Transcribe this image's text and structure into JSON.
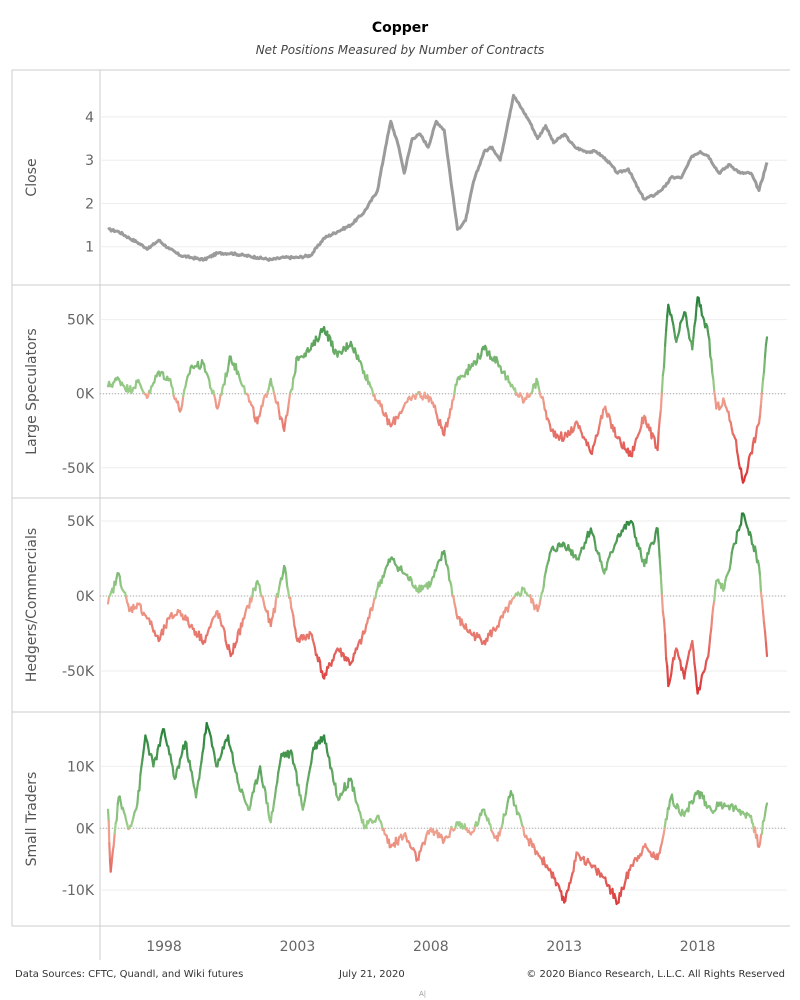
{
  "header": {
    "title": "Copper",
    "subtitle": "Net Positions Measured by Number of Contracts"
  },
  "footer": {
    "sources": "Data Sources: CFTC, Quandl, and Wiki futures",
    "date": "July 21, 2020",
    "copyright": "© 2020 Bianco Research, L.L.C. All Rights Reserved",
    "tiny": "A|"
  },
  "colors": {
    "close_line": "#9b9b9b",
    "positive_dark": "#1e7b34",
    "positive_light": "#9fd08c",
    "negative_light": "#f0a693",
    "negative_dark": "#d7262b",
    "gridline": "#eeeeee",
    "zero_line": "#aaaaaa",
    "border": "#cccccc"
  },
  "chart_data": {
    "type": "line",
    "x_axis": {
      "min": 1995.6,
      "max": 2020.6,
      "ticks": [
        1998,
        2003,
        2008,
        2013,
        2018
      ],
      "tick_labels": [
        "1998",
        "2003",
        "2008",
        "2013",
        "2018"
      ]
    },
    "panels": [
      {
        "name": "Close",
        "ylabel": "Close",
        "style": "gray",
        "ylim": [
          0.3,
          4.9
        ],
        "ticks": [
          1,
          2,
          3,
          4
        ],
        "tick_labels": [
          "1",
          "2",
          "3",
          "4"
        ],
        "zero_line": false,
        "x": [
          1995.9,
          1996.3,
          1996.7,
          1997.0,
          1997.4,
          1997.8,
          1998.2,
          1998.6,
          1999.0,
          1999.5,
          2000.0,
          2000.5,
          2001.0,
          2001.5,
          2002.0,
          2002.5,
          2003.0,
          2003.5,
          2004.0,
          2004.5,
          2005.0,
          2005.5,
          2006.0,
          2006.3,
          2006.5,
          2006.8,
          2007.0,
          2007.3,
          2007.6,
          2007.9,
          2008.2,
          2008.5,
          2008.8,
          2009.0,
          2009.3,
          2009.6,
          2010.0,
          2010.3,
          2010.6,
          2010.9,
          2011.1,
          2011.4,
          2011.7,
          2012.0,
          2012.3,
          2012.6,
          2013.0,
          2013.4,
          2013.8,
          2014.2,
          2014.6,
          2015.0,
          2015.4,
          2015.8,
          2016.0,
          2016.4,
          2016.8,
          2017.0,
          2017.4,
          2017.8,
          2018.1,
          2018.4,
          2018.8,
          2019.2,
          2019.6,
          2020.0,
          2020.3,
          2020.6
        ],
        "y": [
          1.4,
          1.35,
          1.2,
          1.1,
          0.95,
          1.15,
          0.95,
          0.8,
          0.75,
          0.7,
          0.85,
          0.85,
          0.8,
          0.75,
          0.7,
          0.75,
          0.75,
          0.8,
          1.2,
          1.35,
          1.5,
          1.8,
          2.3,
          3.3,
          3.9,
          3.3,
          2.7,
          3.5,
          3.6,
          3.3,
          3.9,
          3.7,
          2.3,
          1.4,
          1.6,
          2.5,
          3.2,
          3.3,
          3.0,
          3.9,
          4.5,
          4.2,
          3.9,
          3.5,
          3.8,
          3.4,
          3.6,
          3.3,
          3.2,
          3.2,
          3.0,
          2.7,
          2.8,
          2.3,
          2.1,
          2.2,
          2.4,
          2.6,
          2.6,
          3.1,
          3.2,
          3.1,
          2.7,
          2.9,
          2.7,
          2.7,
          2.3,
          2.95
        ]
      },
      {
        "name": "Large Speculators",
        "ylabel": "Large Speculators",
        "style": "diverging",
        "ylim": [
          -65,
          68
        ],
        "ticks": [
          -50,
          0,
          50
        ],
        "tick_labels": [
          "-50K",
          "0K",
          "50K"
        ],
        "zero_line": true,
        "x": [
          1995.9,
          1996.3,
          1996.7,
          1997.0,
          1997.4,
          1997.8,
          1998.2,
          1998.6,
          1999.0,
          1999.5,
          2000.0,
          2000.5,
          2001.0,
          2001.5,
          2002.0,
          2002.5,
          2003.0,
          2003.5,
          2004.0,
          2004.5,
          2005.0,
          2005.5,
          2006.0,
          2006.5,
          2007.0,
          2007.5,
          2008.0,
          2008.5,
          2009.0,
          2009.5,
          2010.0,
          2010.5,
          2011.0,
          2011.5,
          2012.0,
          2012.5,
          2013.0,
          2013.5,
          2014.0,
          2014.5,
          2015.0,
          2015.5,
          2016.0,
          2016.5,
          2016.9,
          2017.2,
          2017.5,
          2017.8,
          2018.0,
          2018.4,
          2018.7,
          2019.0,
          2019.4,
          2019.7,
          2020.0,
          2020.3,
          2020.6
        ],
        "y": [
          5,
          10,
          2,
          8,
          -2,
          15,
          10,
          -12,
          18,
          20,
          -10,
          25,
          5,
          -20,
          10,
          -25,
          25,
          30,
          45,
          25,
          35,
          15,
          -5,
          -22,
          -8,
          0,
          -3,
          -28,
          10,
          18,
          30,
          22,
          5,
          -5,
          8,
          -25,
          -30,
          -20,
          -40,
          -10,
          -30,
          -42,
          -15,
          -38,
          60,
          35,
          55,
          30,
          65,
          40,
          -10,
          -5,
          -30,
          -60,
          -40,
          -20,
          38
        ]
      },
      {
        "name": "Hedgers/Commercials",
        "ylabel": "Hedgers/Commercials",
        "style": "diverging",
        "ylim": [
          -72,
          60
        ],
        "ticks": [
          -50,
          0,
          50
        ],
        "tick_labels": [
          "-50K",
          "0K",
          "50K"
        ],
        "zero_line": true,
        "x": [
          1995.9,
          1996.3,
          1996.7,
          1997.0,
          1997.4,
          1997.8,
          1998.2,
          1998.6,
          1999.0,
          1999.5,
          2000.0,
          2000.5,
          2001.0,
          2001.5,
          2002.0,
          2002.5,
          2003.0,
          2003.5,
          2004.0,
          2004.5,
          2005.0,
          2005.5,
          2006.0,
          2006.5,
          2007.0,
          2007.5,
          2008.0,
          2008.5,
          2009.0,
          2009.5,
          2010.0,
          2010.5,
          2011.0,
          2011.5,
          2012.0,
          2012.5,
          2013.0,
          2013.5,
          2014.0,
          2014.5,
          2015.0,
          2015.5,
          2016.0,
          2016.5,
          2016.9,
          2017.2,
          2017.5,
          2017.8,
          2018.0,
          2018.4,
          2018.7,
          2019.0,
          2019.4,
          2019.7,
          2020.0,
          2020.3,
          2020.6
        ],
        "y": [
          -5,
          15,
          -10,
          -5,
          -15,
          -30,
          -15,
          -10,
          -20,
          -30,
          -10,
          -40,
          -15,
          10,
          -20,
          20,
          -30,
          -25,
          -55,
          -35,
          -45,
          -25,
          5,
          25,
          15,
          5,
          8,
          30,
          -15,
          -25,
          -30,
          -20,
          -5,
          5,
          -10,
          30,
          35,
          25,
          45,
          15,
          40,
          50,
          20,
          45,
          -60,
          -35,
          -55,
          -30,
          -65,
          -40,
          10,
          5,
          35,
          55,
          40,
          20,
          -40
        ]
      },
      {
        "name": "Small Traders",
        "ylabel": "Small Traders",
        "style": "diverging",
        "ylim": [
          -14.5,
          17.5
        ],
        "ticks": [
          -10,
          0,
          10
        ],
        "tick_labels": [
          "-10K",
          "0K",
          "10K"
        ],
        "zero_line": true,
        "x": [
          1995.9,
          1996.0,
          1996.3,
          1996.7,
          1997.0,
          1997.3,
          1997.6,
          1998.0,
          1998.4,
          1998.8,
          1999.2,
          1999.6,
          2000.0,
          2000.4,
          2000.8,
          2001.2,
          2001.6,
          2002.0,
          2002.4,
          2002.8,
          2003.2,
          2003.6,
          2004.0,
          2004.5,
          2005.0,
          2005.5,
          2006.0,
          2006.5,
          2007.0,
          2007.5,
          2008.0,
          2008.5,
          2009.0,
          2009.5,
          2010.0,
          2010.5,
          2011.0,
          2011.5,
          2012.0,
          2012.5,
          2013.0,
          2013.5,
          2014.0,
          2014.5,
          2015.0,
          2015.5,
          2016.0,
          2016.5,
          2017.0,
          2017.5,
          2018.0,
          2018.5,
          2019.0,
          2019.5,
          2020.0,
          2020.3,
          2020.6
        ],
        "y": [
          3,
          -7,
          5,
          0,
          4,
          15,
          10,
          16,
          8,
          14,
          5,
          17,
          10,
          15,
          7,
          3,
          10,
          1,
          12,
          12,
          3,
          13,
          15,
          5,
          8,
          0,
          2,
          -3,
          -1,
          -5,
          0,
          -2,
          1,
          -1,
          3,
          -2,
          6,
          -1,
          -4,
          -7,
          -12,
          -4,
          -6,
          -8,
          -12,
          -6,
          -3,
          -5,
          5,
          2,
          6,
          3,
          4,
          3,
          2,
          -3,
          4
        ]
      }
    ]
  }
}
